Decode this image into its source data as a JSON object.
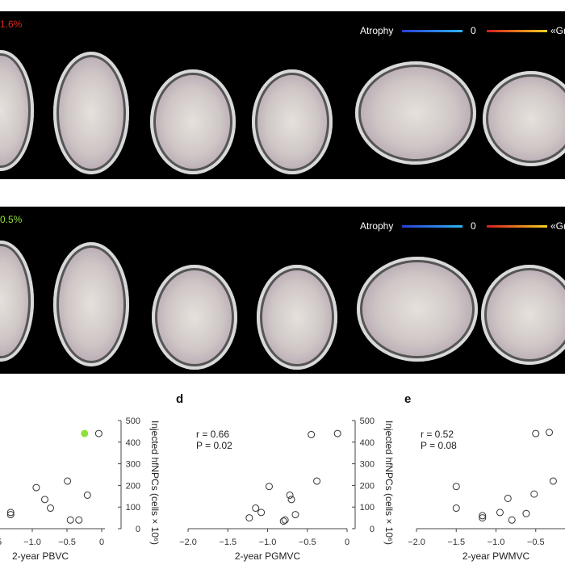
{
  "figure": {
    "top_panel": {
      "percent_label": "1.6%",
      "percent_color": "#e0261a"
    },
    "bottom_panel": {
      "percent_label": "0.5%",
      "percent_color": "#8fe03a"
    },
    "legend": {
      "atrophy_label": "Atrophy",
      "zero_label": "0",
      "growth_label": "«Gr"
    },
    "colors": {
      "atrophy_gradient": [
        "#2a3fd6",
        "#2fb4f0"
      ],
      "growth_gradient": [
        "#d41e1e",
        "#f5d020"
      ],
      "highlight_point": "#8fe03a"
    }
  },
  "chart_data": [
    {
      "type": "scatter",
      "panel_label": "",
      "xlabel": "2-year PBVC",
      "ylabel": "Injected hfNPCs (cells × 10⁶)",
      "ylim": [
        0,
        500
      ],
      "yticks": [
        "0",
        "100",
        "200",
        "300",
        "400",
        "500"
      ],
      "xticks": [
        "-1.0",
        "-0.5",
        "0"
      ],
      "annotation": "",
      "points": [
        {
          "x": -0.2,
          "y": 440
        },
        {
          "x": -0.45,
          "y": 440,
          "highlight": true
        },
        {
          "x": -0.4,
          "y": 155
        },
        {
          "x": -0.75,
          "y": 220
        },
        {
          "x": -1.3,
          "y": 190
        },
        {
          "x": -1.15,
          "y": 135
        },
        {
          "x": -1.05,
          "y": 95
        },
        {
          "x": -0.7,
          "y": 40
        },
        {
          "x": -0.55,
          "y": 40
        },
        {
          "x": -1.75,
          "y": 75
        },
        {
          "x": -1.75,
          "y": 65
        }
      ]
    },
    {
      "type": "scatter",
      "panel_label": "d",
      "xlabel": "2-year PGMVC",
      "ylabel": "Injected hfNPCs (cells × 10⁶)",
      "xlim": [
        -2.0,
        0
      ],
      "ylim": [
        0,
        500
      ],
      "xticks": [
        "-2.0",
        "-1.5",
        "-1.0",
        "-0.5",
        "0"
      ],
      "yticks": [
        "0",
        "100",
        "200",
        "300",
        "400",
        "500"
      ],
      "annotation": {
        "r": "r = 0.66",
        "p": "P = 0.02"
      },
      "points": [
        {
          "x": -0.12,
          "y": 440
        },
        {
          "x": -0.45,
          "y": 435
        },
        {
          "x": -0.38,
          "y": 220
        },
        {
          "x": -0.98,
          "y": 195
        },
        {
          "x": -0.72,
          "y": 155
        },
        {
          "x": -0.7,
          "y": 135
        },
        {
          "x": -1.15,
          "y": 95
        },
        {
          "x": -1.08,
          "y": 75
        },
        {
          "x": -0.65,
          "y": 65
        },
        {
          "x": -1.23,
          "y": 50
        },
        {
          "x": -0.78,
          "y": 40
        },
        {
          "x": -0.8,
          "y": 35
        }
      ]
    },
    {
      "type": "scatter",
      "panel_label": "e",
      "xlabel": "2-year PWMVC",
      "ylabel": "",
      "xlim": [
        -2.0,
        0
      ],
      "ylim": [
        0,
        500
      ],
      "xticks": [
        "-2.0",
        "-1.5",
        "-1.0",
        "-0.5"
      ],
      "annotation": {
        "r": "r = 0.52",
        "p": "P = 0.08"
      },
      "points": [
        {
          "x": -0.5,
          "y": 440
        },
        {
          "x": -0.33,
          "y": 445
        },
        {
          "x": -0.28,
          "y": 220
        },
        {
          "x": -1.5,
          "y": 195
        },
        {
          "x": -0.52,
          "y": 160
        },
        {
          "x": -0.85,
          "y": 140
        },
        {
          "x": -1.5,
          "y": 95
        },
        {
          "x": -0.95,
          "y": 75
        },
        {
          "x": -0.62,
          "y": 70
        },
        {
          "x": -1.17,
          "y": 60
        },
        {
          "x": -1.17,
          "y": 50
        },
        {
          "x": -0.8,
          "y": 40
        }
      ]
    }
  ]
}
